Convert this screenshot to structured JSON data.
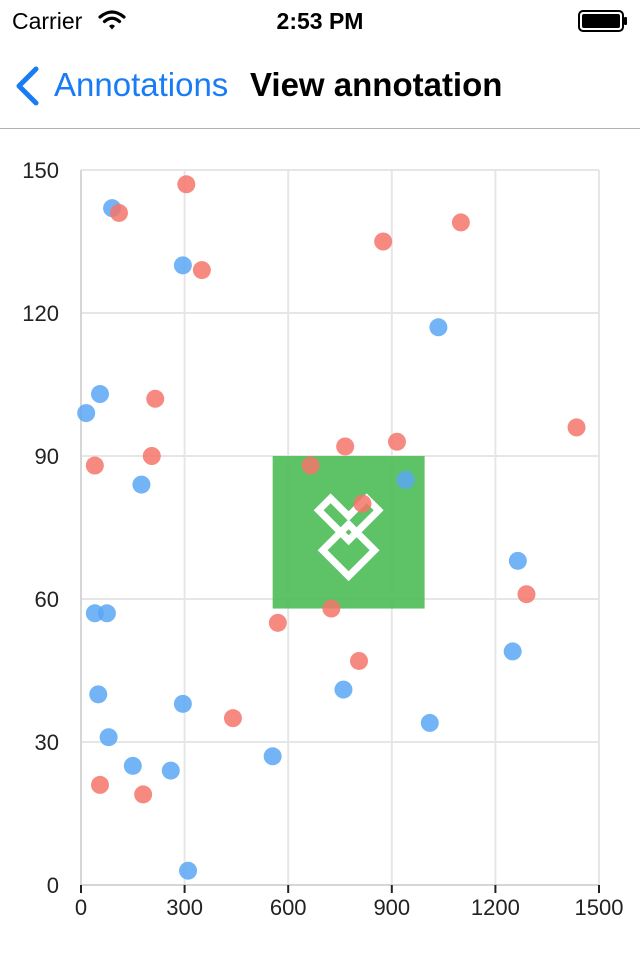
{
  "status_bar": {
    "carrier": "Carrier",
    "time": "2:53 PM"
  },
  "nav": {
    "back_label": "Annotations",
    "title": "View annotation"
  },
  "chart_data": {
    "type": "scatter",
    "xlim": [
      0,
      1500
    ],
    "ylim": [
      0,
      150
    ],
    "x_ticks": [
      "0",
      "300",
      "600",
      "900",
      "1200",
      "1500"
    ],
    "y_ticks": [
      "0",
      "30",
      "60",
      "90",
      "120",
      "150"
    ],
    "grid": true,
    "series": [
      {
        "color": "#5aa7f5",
        "points": [
          [
            90,
            142
          ],
          [
            295,
            130
          ],
          [
            1035,
            117
          ],
          [
            15,
            99
          ],
          [
            55,
            103
          ],
          [
            175,
            84
          ],
          [
            940,
            85
          ],
          [
            1265,
            68
          ],
          [
            40,
            57
          ],
          [
            75,
            57
          ],
          [
            1250,
            49
          ],
          [
            760,
            41
          ],
          [
            50,
            40
          ],
          [
            295,
            38
          ],
          [
            1010,
            34
          ],
          [
            80,
            31
          ],
          [
            150,
            25
          ],
          [
            260,
            24
          ],
          [
            555,
            27
          ],
          [
            310,
            3
          ]
        ]
      },
      {
        "color": "#f5756b",
        "points": [
          [
            305,
            147
          ],
          [
            110,
            141
          ],
          [
            350,
            129
          ],
          [
            875,
            135
          ],
          [
            1100,
            139
          ],
          [
            215,
            102
          ],
          [
            1435,
            96
          ],
          [
            40,
            88
          ],
          [
            205,
            90
          ],
          [
            765,
            92
          ],
          [
            915,
            93
          ],
          [
            665,
            88
          ],
          [
            815,
            80
          ],
          [
            1290,
            61
          ],
          [
            725,
            58
          ],
          [
            570,
            55
          ],
          [
            805,
            47
          ],
          [
            440,
            35
          ],
          [
            55,
            21
          ],
          [
            180,
            19
          ]
        ]
      }
    ],
    "annotation": {
      "x_range": [
        555,
        995
      ],
      "y_range": [
        58,
        90
      ],
      "color": "#4cbb57",
      "icon": "logo-icon"
    }
  }
}
